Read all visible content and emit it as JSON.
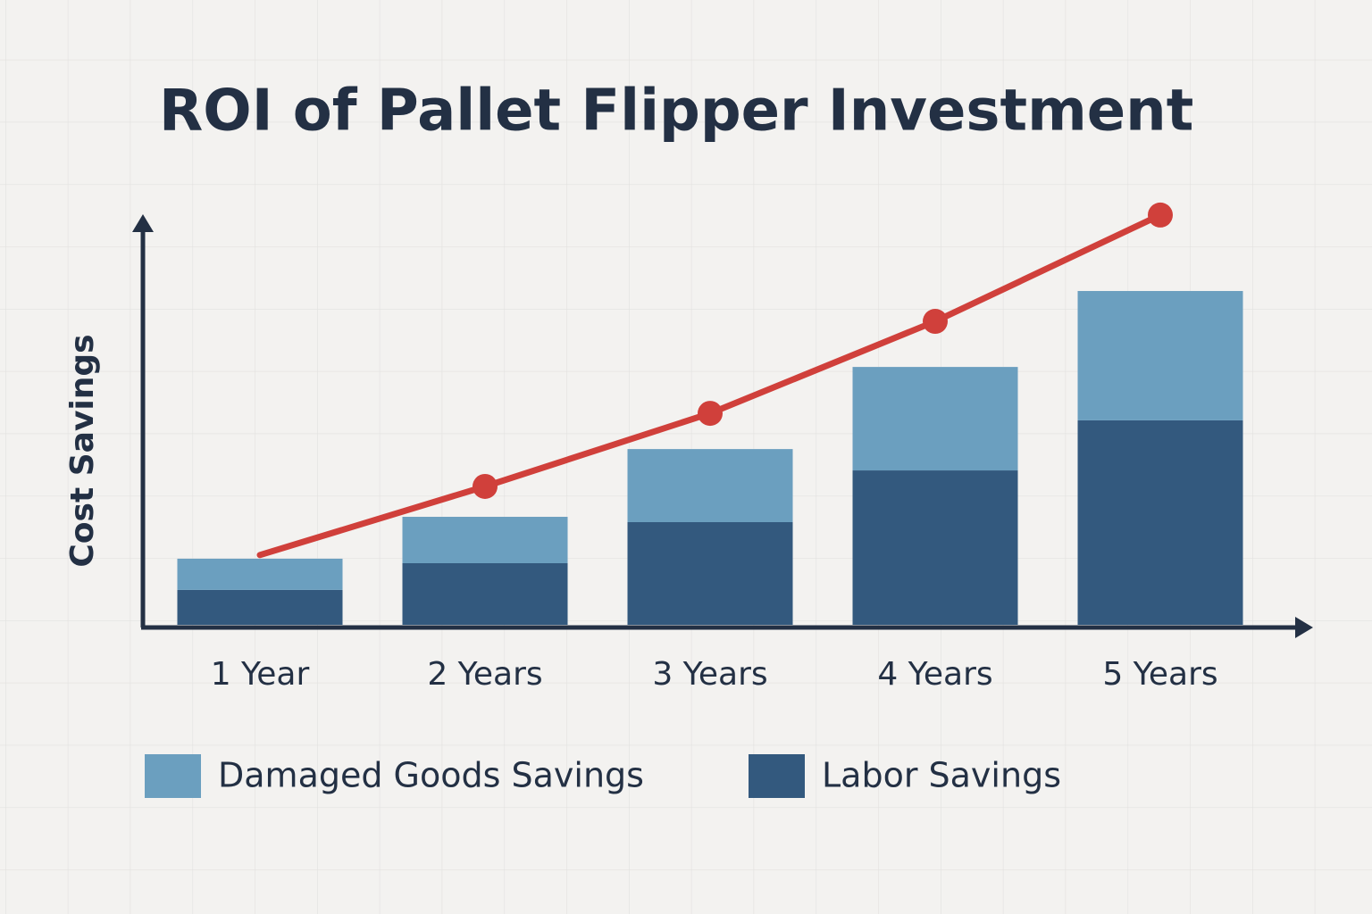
{
  "chart_data": {
    "type": "stacked-bar-line",
    "title": "ROI of Pallet Flipper Investment",
    "y_label": "Cost Savings",
    "categories": [
      "1 Year",
      "2 Years",
      "3 Years",
      "4 Years",
      "5 Years"
    ],
    "ylim": [
      0,
      100
    ],
    "series": [
      {
        "name": "Labor Savings",
        "color": "#33597e",
        "type": "bar",
        "values": [
          8.5,
          15.0,
          25.0,
          37.6,
          49.8
        ]
      },
      {
        "name": "Damaged Goods Savings",
        "color": "#6b9fbf",
        "type": "bar",
        "values": [
          7.6,
          11.3,
          17.8,
          25.2,
          31.5
        ]
      },
      {
        "color": "#d0403b",
        "type": "line",
        "values": [
          17.0,
          33.7,
          51.5,
          73.9,
          99.8
        ]
      }
    ]
  }
}
